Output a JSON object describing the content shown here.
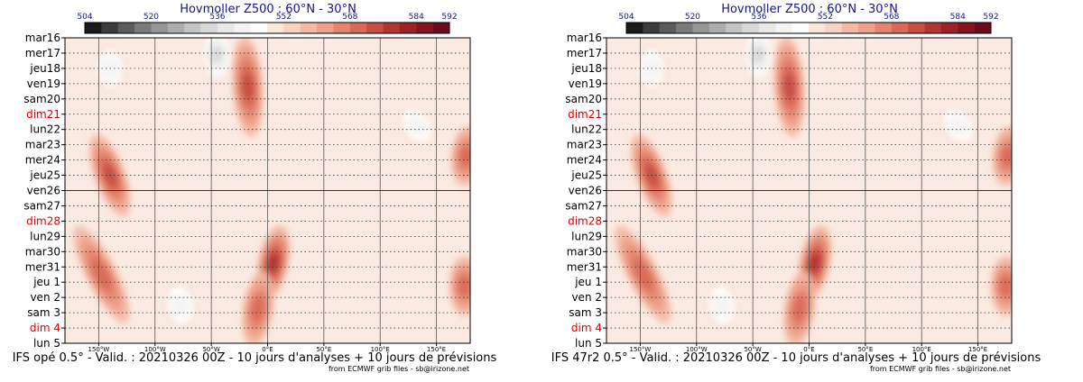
{
  "chart_data": [
    {
      "type": "heatmap",
      "title": "Hovmoller Z500 : 60°N - 30°N",
      "caption": "IFS opé 0.5° - Valid. : 20210326 00Z - 10 jours d'analyses + 10 jours de prévisions",
      "credit": "from ECMWF grib files - sb@irizone.net",
      "colorbar": {
        "levels": [
          504,
          508,
          512,
          516,
          520,
          524,
          528,
          532,
          536,
          540,
          544,
          548,
          552,
          556,
          560,
          564,
          568,
          572,
          576,
          580,
          584,
          588,
          592
        ],
        "labels": [
          "504",
          "520",
          "536",
          "552",
          "568",
          "584",
          "592"
        ],
        "colors": [
          "#1a1a1a",
          "#3c3c3c",
          "#5c5c5c",
          "#7a7a7a",
          "#959595",
          "#adadad",
          "#c4c4c4",
          "#d8d8d8",
          "#e8e8e8",
          "#f3f3f3",
          "#ffffff",
          "#fbe6dc",
          "#f8d3c3",
          "#f3baa5",
          "#eea08a",
          "#e48570",
          "#d96a58",
          "#c84d42",
          "#b33431",
          "#9c2228",
          "#85131f",
          "#6b0a1a"
        ]
      },
      "x_ticks": [
        "150°W",
        "100°W",
        "50°W",
        "0°E",
        "50°E",
        "100°E",
        "150°E"
      ],
      "x_tick_lons": [
        -150,
        -100,
        -50,
        0,
        50,
        100,
        150
      ],
      "xlim": [
        -180,
        180
      ],
      "y_labels": [
        "mar16",
        "mer17",
        "jeu18",
        "ven19",
        "sam20",
        "dim21",
        "lun22",
        "mar23",
        "mer24",
        "jeu25",
        "ven26",
        "sam27",
        "dim28",
        "lun29",
        "mar30",
        "mer31",
        "jeu 1",
        "ven 2",
        "sam 3",
        "dim 4",
        "lun 5"
      ],
      "sundays": [
        "dim21",
        "dim28",
        "dim 4"
      ],
      "analysis_split_label": "ven26",
      "features": [
        {
          "lon0": -150,
          "lon1": -130,
          "t0": 7,
          "t1": 11,
          "value": 572
        },
        {
          "lon0": -165,
          "lon1": -130,
          "t0": 13,
          "t1": 18,
          "value": 568
        },
        {
          "lon0": -20,
          "lon1": -15,
          "t0": 0.6,
          "t1": 5.8,
          "value": 572
        },
        {
          "lon0": 10,
          "lon1": 0,
          "t0": 13,
          "t1": 16.5,
          "value": 574
        },
        {
          "lon0": -5,
          "lon1": -12,
          "t0": 16,
          "t1": 19.5,
          "value": 566
        },
        {
          "lon0": -45,
          "lon1": -45,
          "t0": 0,
          "t1": 2.2,
          "value": 532
        },
        {
          "lon0": -140,
          "lon1": -140,
          "t0": 1,
          "t1": 3,
          "value": 540
        },
        {
          "lon0": 125,
          "lon1": 140,
          "t0": 5,
          "t1": 6.5,
          "value": 540
        },
        {
          "lon0": 178,
          "lon1": 175,
          "t0": 6.5,
          "t1": 9,
          "value": 568
        },
        {
          "lon0": 175,
          "lon1": 175,
          "t0": 15,
          "t1": 17.5,
          "value": 566
        },
        {
          "lon0": -80,
          "lon1": -75,
          "t0": 16.5,
          "t1": 18.5,
          "value": 540
        }
      ]
    },
    {
      "type": "heatmap",
      "title": "Hovmoller Z500 : 60°N - 30°N",
      "caption": "IFS 47r2 0.5° - Valid. : 20210326 00Z - 10 jours d'analyses + 10 jours de prévisions",
      "credit": "from ECMWF grib files - sb@irizone.net",
      "colorbar": {
        "levels": [
          504,
          508,
          512,
          516,
          520,
          524,
          528,
          532,
          536,
          540,
          544,
          548,
          552,
          556,
          560,
          564,
          568,
          572,
          576,
          580,
          584,
          588,
          592
        ],
        "labels": [
          "504",
          "520",
          "536",
          "552",
          "568",
          "584",
          "592"
        ],
        "colors": [
          "#1a1a1a",
          "#3c3c3c",
          "#5c5c5c",
          "#7a7a7a",
          "#959595",
          "#adadad",
          "#c4c4c4",
          "#d8d8d8",
          "#e8e8e8",
          "#f3f3f3",
          "#ffffff",
          "#fbe6dc",
          "#f8d3c3",
          "#f3baa5",
          "#eea08a",
          "#e48570",
          "#d96a58",
          "#c84d42",
          "#b33431",
          "#9c2228",
          "#85131f",
          "#6b0a1a"
        ]
      },
      "x_ticks": [
        "150°W",
        "100°W",
        "50°W",
        "0°E",
        "50°E",
        "100°E",
        "150°E"
      ],
      "x_tick_lons": [
        -150,
        -100,
        -50,
        0,
        50,
        100,
        150
      ],
      "xlim": [
        -180,
        180
      ],
      "y_labels": [
        "mar16",
        "mer17",
        "jeu18",
        "ven19",
        "sam20",
        "dim21",
        "lun22",
        "mar23",
        "mer24",
        "jeu25",
        "ven26",
        "sam27",
        "dim28",
        "lun29",
        "mar30",
        "mer31",
        "jeu 1",
        "ven 2",
        "sam 3",
        "dim 4",
        "lun 5"
      ],
      "sundays": [
        "dim21",
        "dim28",
        "dim 4"
      ],
      "analysis_split_label": "ven26",
      "features": [
        {
          "lon0": -150,
          "lon1": -130,
          "t0": 7,
          "t1": 11,
          "value": 572
        },
        {
          "lon0": -165,
          "lon1": -130,
          "t0": 13,
          "t1": 18,
          "value": 568
        },
        {
          "lon0": -20,
          "lon1": -15,
          "t0": 0.6,
          "t1": 5.8,
          "value": 572
        },
        {
          "lon0": 10,
          "lon1": 0,
          "t0": 13,
          "t1": 16.5,
          "value": 574
        },
        {
          "lon0": -5,
          "lon1": -12,
          "t0": 16,
          "t1": 19.5,
          "value": 568
        },
        {
          "lon0": -45,
          "lon1": -45,
          "t0": 0,
          "t1": 2.2,
          "value": 532
        },
        {
          "lon0": -140,
          "lon1": -140,
          "t0": 1,
          "t1": 3,
          "value": 540
        },
        {
          "lon0": 125,
          "lon1": 140,
          "t0": 5,
          "t1": 6.5,
          "value": 540
        },
        {
          "lon0": 178,
          "lon1": 175,
          "t0": 6.5,
          "t1": 9,
          "value": 568
        },
        {
          "lon0": 175,
          "lon1": 175,
          "t0": 15,
          "t1": 17.5,
          "value": 568
        },
        {
          "lon0": -80,
          "lon1": -75,
          "t0": 16.5,
          "t1": 18.5,
          "value": 540
        }
      ]
    }
  ]
}
